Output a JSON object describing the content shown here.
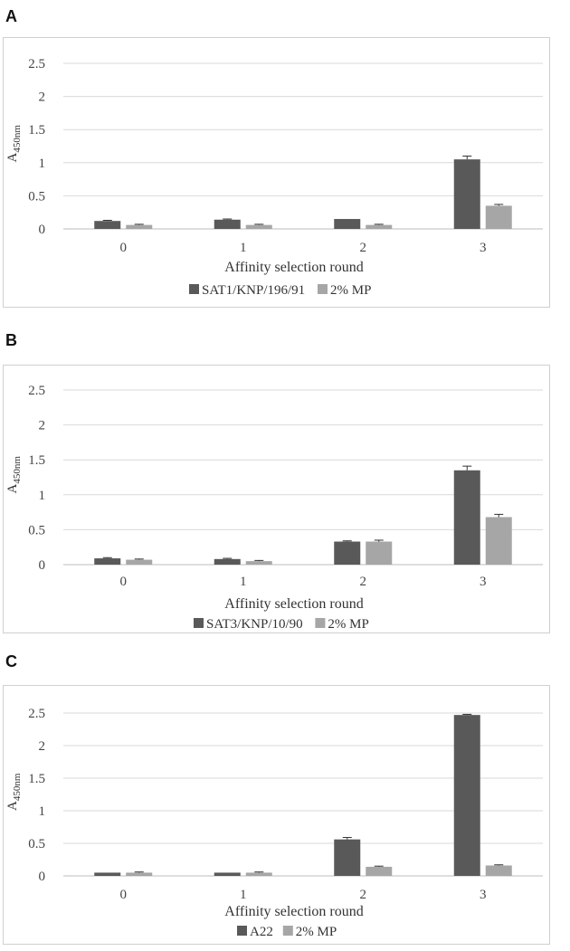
{
  "chart_data": [
    {
      "panel": "A",
      "type": "bar",
      "categories": [
        "0",
        "1",
        "2",
        "3"
      ],
      "series": [
        {
          "name": "SAT1/KNP/196/91",
          "values": [
            0.12,
            0.14,
            0.15,
            1.05
          ],
          "errors": [
            0.01,
            0.01,
            0.0,
            0.05
          ],
          "color": "#595959"
        },
        {
          "name": "2% MP",
          "values": [
            0.06,
            0.06,
            0.06,
            0.35
          ],
          "errors": [
            0.01,
            0.01,
            0.01,
            0.02
          ],
          "color": "#a6a6a6"
        }
      ],
      "ylim": [
        0,
        2.5
      ],
      "yticks": [
        "0",
        "0.5",
        "1",
        "1.5",
        "2",
        "2.5"
      ],
      "ylabel": "A",
      "ylabel_sub": "450nm",
      "xlabel": "Affinity selection round",
      "grid": true,
      "legend": "bottom"
    },
    {
      "panel": "B",
      "type": "bar",
      "categories": [
        "0",
        "1",
        "2",
        "3"
      ],
      "series": [
        {
          "name": "SAT3/KNP/10/90",
          "values": [
            0.09,
            0.08,
            0.33,
            1.35
          ],
          "errors": [
            0.01,
            0.01,
            0.01,
            0.06
          ],
          "color": "#595959"
        },
        {
          "name": "2% MP",
          "values": [
            0.07,
            0.05,
            0.33,
            0.68
          ],
          "errors": [
            0.01,
            0.01,
            0.02,
            0.04
          ],
          "color": "#a6a6a6"
        }
      ],
      "ylim": [
        0,
        2.5
      ],
      "yticks": [
        "0",
        "0.5",
        "1",
        "1.5",
        "2",
        "2.5"
      ],
      "ylabel": "A",
      "ylabel_sub": "450nm",
      "xlabel": "Affinity selection round",
      "grid": true,
      "legend": "bottom"
    },
    {
      "panel": "C",
      "type": "bar",
      "categories": [
        "0",
        "1",
        "2",
        "3"
      ],
      "series": [
        {
          "name": "A22",
          "values": [
            0.05,
            0.05,
            0.56,
            2.47
          ],
          "errors": [
            0.0,
            0.0,
            0.03,
            0.01
          ],
          "color": "#595959"
        },
        {
          "name": "2% MP",
          "values": [
            0.05,
            0.05,
            0.14,
            0.16
          ],
          "errors": [
            0.01,
            0.01,
            0.01,
            0.01
          ],
          "color": "#a6a6a6"
        }
      ],
      "ylim": [
        0,
        2.5
      ],
      "yticks": [
        "0",
        "0.5",
        "1",
        "1.5",
        "2",
        "2.5"
      ],
      "ylabel": "A",
      "ylabel_sub": "450nm",
      "xlabel": "Affinity selection round",
      "grid": true,
      "legend": "bottom"
    }
  ]
}
